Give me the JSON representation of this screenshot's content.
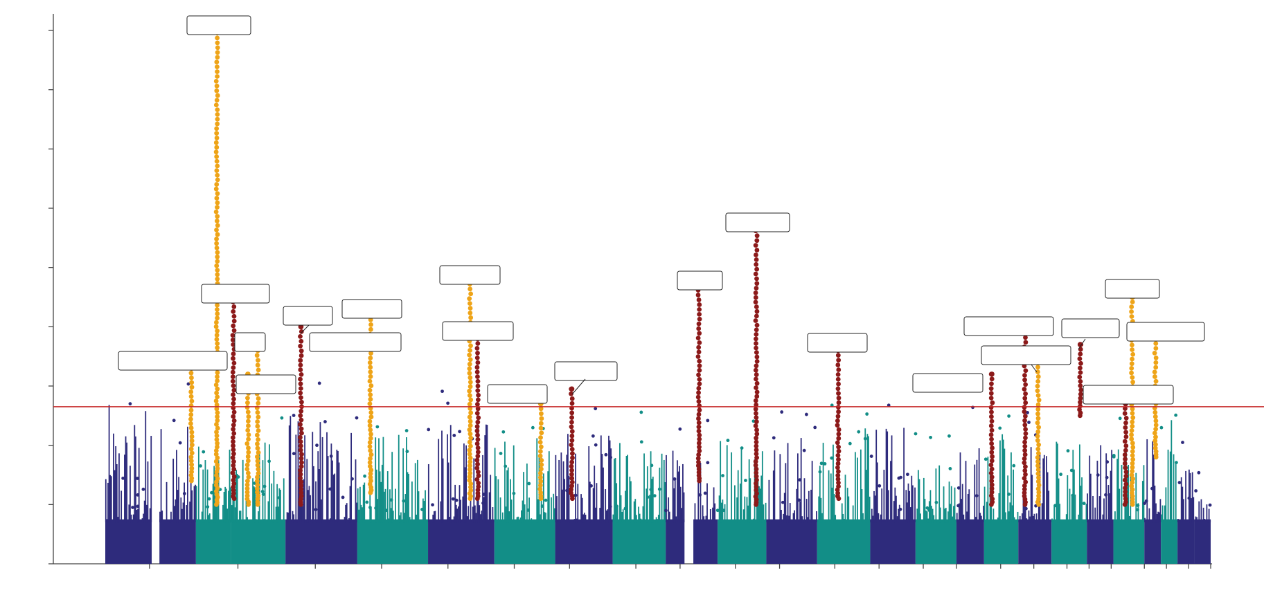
{
  "colors": {
    "chrom_a": "#2e2b7c",
    "chrom_b": "#128e87",
    "hit_gold": "#eea418",
    "hit_red": "#8c1a1a",
    "threshold": "#c62828",
    "axis": "#444444"
  },
  "chart_data": {
    "type": "scatter",
    "subtype": "manhattan",
    "title": "",
    "xlabel": "",
    "ylabel": "",
    "ylim": [
      0,
      9.6
    ],
    "y_ticks": [
      0,
      1,
      2,
      3,
      4,
      5,
      6,
      7,
      8,
      9
    ],
    "x_tick_positions": [
      0.04,
      0.12,
      0.19,
      0.25,
      0.31,
      0.37,
      0.42,
      0.48,
      0.52,
      0.57,
      0.61,
      0.66,
      0.7,
      0.74,
      0.77,
      0.81,
      0.84,
      0.87,
      0.89,
      0.91,
      0.94,
      0.96,
      0.98,
      1.0
    ],
    "threshold": 2.65,
    "chromosomes": [
      {
        "start": 0.0,
        "end": 0.042,
        "color": "a",
        "h": 2.1
      },
      {
        "start": 0.049,
        "end": 0.082,
        "color": "a",
        "h": 1.9
      },
      {
        "start": 0.082,
        "end": 0.114,
        "color": "b",
        "h": 1.6
      },
      {
        "start": 0.114,
        "end": 0.163,
        "color": "b",
        "h": 1.5
      },
      {
        "start": 0.163,
        "end": 0.228,
        "color": "a",
        "h": 2.0
      },
      {
        "start": 0.228,
        "end": 0.292,
        "color": "b",
        "h": 1.6
      },
      {
        "start": 0.292,
        "end": 0.352,
        "color": "a",
        "h": 1.9
      },
      {
        "start": 0.352,
        "end": 0.407,
        "color": "b",
        "h": 1.6
      },
      {
        "start": 0.407,
        "end": 0.459,
        "color": "a",
        "h": 1.6
      },
      {
        "start": 0.459,
        "end": 0.507,
        "color": "b",
        "h": 1.5
      },
      {
        "start": 0.507,
        "end": 0.524,
        "color": "a",
        "h": 1.4
      },
      {
        "start": 0.532,
        "end": 0.554,
        "color": "a",
        "h": 1.6
      },
      {
        "start": 0.554,
        "end": 0.598,
        "color": "b",
        "h": 1.7
      },
      {
        "start": 0.598,
        "end": 0.644,
        "color": "a",
        "h": 1.6
      },
      {
        "start": 0.644,
        "end": 0.692,
        "color": "b",
        "h": 1.7
      },
      {
        "start": 0.692,
        "end": 0.733,
        "color": "a",
        "h": 1.8
      },
      {
        "start": 0.733,
        "end": 0.77,
        "color": "b",
        "h": 1.2
      },
      {
        "start": 0.77,
        "end": 0.795,
        "color": "a",
        "h": 1.6
      },
      {
        "start": 0.795,
        "end": 0.826,
        "color": "b",
        "h": 1.7
      },
      {
        "start": 0.826,
        "end": 0.856,
        "color": "a",
        "h": 1.5
      },
      {
        "start": 0.856,
        "end": 0.888,
        "color": "b",
        "h": 1.6
      },
      {
        "start": 0.888,
        "end": 0.912,
        "color": "a",
        "h": 1.5
      },
      {
        "start": 0.912,
        "end": 0.94,
        "color": "b",
        "h": 1.6
      },
      {
        "start": 0.94,
        "end": 0.955,
        "color": "a",
        "h": 1.7
      },
      {
        "start": 0.955,
        "end": 0.97,
        "color": "b",
        "h": 1.9
      },
      {
        "start": 0.97,
        "end": 0.985,
        "color": "a",
        "h": 1.0
      },
      {
        "start": 0.985,
        "end": 1.0,
        "color": "a",
        "h": 1.1
      }
    ],
    "hits": [
      {
        "x": 0.101,
        "color": "gold",
        "top": 9.2,
        "bottom": 1.0
      },
      {
        "x": 0.078,
        "color": "gold",
        "top": 3.3,
        "bottom": 1.4
      },
      {
        "x": 0.116,
        "color": "red",
        "top": 4.5,
        "bottom": 1.1
      },
      {
        "x": 0.138,
        "color": "gold",
        "top": 3.6,
        "bottom": 1.0
      },
      {
        "x": 0.129,
        "color": "gold",
        "top": 3.2,
        "bottom": 1.0
      },
      {
        "x": 0.177,
        "color": "red",
        "top": 4.0,
        "bottom": 1.0
      },
      {
        "x": 0.24,
        "color": "gold",
        "top": 4.2,
        "bottom": 1.2
      },
      {
        "x": 0.33,
        "color": "gold",
        "top": 4.8,
        "bottom": 1.1
      },
      {
        "x": 0.337,
        "color": "red",
        "top": 3.8,
        "bottom": 1.1
      },
      {
        "x": 0.394,
        "color": "gold",
        "top": 2.7,
        "bottom": 1.1
      },
      {
        "x": 0.422,
        "color": "red",
        "top": 2.95,
        "bottom": 1.1
      },
      {
        "x": 0.537,
        "color": "red",
        "top": 4.7,
        "bottom": 1.4
      },
      {
        "x": 0.589,
        "color": "red",
        "top": 5.7,
        "bottom": 1.0
      },
      {
        "x": 0.663,
        "color": "red",
        "top": 3.6,
        "bottom": 1.1
      },
      {
        "x": 0.802,
        "color": "red",
        "top": 3.2,
        "bottom": 1.0
      },
      {
        "x": 0.832,
        "color": "red",
        "top": 3.9,
        "bottom": 1.0
      },
      {
        "x": 0.844,
        "color": "gold",
        "top": 3.4,
        "bottom": 1.0
      },
      {
        "x": 0.882,
        "color": "red",
        "top": 3.7,
        "bottom": 2.5
      },
      {
        "x": 0.929,
        "color": "gold",
        "top": 4.5,
        "bottom": 1.0
      },
      {
        "x": 0.923,
        "color": "red",
        "top": 2.7,
        "bottom": 1.0
      },
      {
        "x": 0.95,
        "color": "gold",
        "top": 3.8,
        "bottom": 1.8
      }
    ],
    "annotations": [
      {
        "label": "",
        "x": 0.101,
        "y": 9.2
      },
      {
        "label": "",
        "x": 0.078,
        "y": 3.3
      },
      {
        "label": "",
        "x": 0.116,
        "y": 4.5
      },
      {
        "label": "",
        "x": 0.138,
        "y": 3.6
      },
      {
        "label": "",
        "x": 0.129,
        "y": 3.2
      },
      {
        "label": "",
        "x": 0.177,
        "y": 4.0
      },
      {
        "label": "",
        "x": 0.24,
        "y": 4.2
      },
      {
        "label": "",
        "x": 0.24,
        "y": 3.9
      },
      {
        "label": "",
        "x": 0.33,
        "y": 4.8
      },
      {
        "label": "",
        "x": 0.337,
        "y": 3.8
      },
      {
        "label": "",
        "x": 0.394,
        "y": 2.7
      },
      {
        "label": "",
        "x": 0.422,
        "y": 2.95
      },
      {
        "label": "",
        "x": 0.537,
        "y": 4.7
      },
      {
        "label": "",
        "x": 0.589,
        "y": 5.7
      },
      {
        "label": "",
        "x": 0.663,
        "y": 3.6
      },
      {
        "label": "",
        "x": 0.802,
        "y": 3.2
      },
      {
        "label": "",
        "x": 0.832,
        "y": 3.9
      },
      {
        "label": "",
        "x": 0.844,
        "y": 3.4
      },
      {
        "label": "",
        "x": 0.882,
        "y": 3.7
      },
      {
        "label": "",
        "x": 0.929,
        "y": 4.5
      },
      {
        "label": "",
        "x": 0.95,
        "y": 3.8
      },
      {
        "label": "",
        "x": 0.923,
        "y": 2.7
      }
    ]
  }
}
